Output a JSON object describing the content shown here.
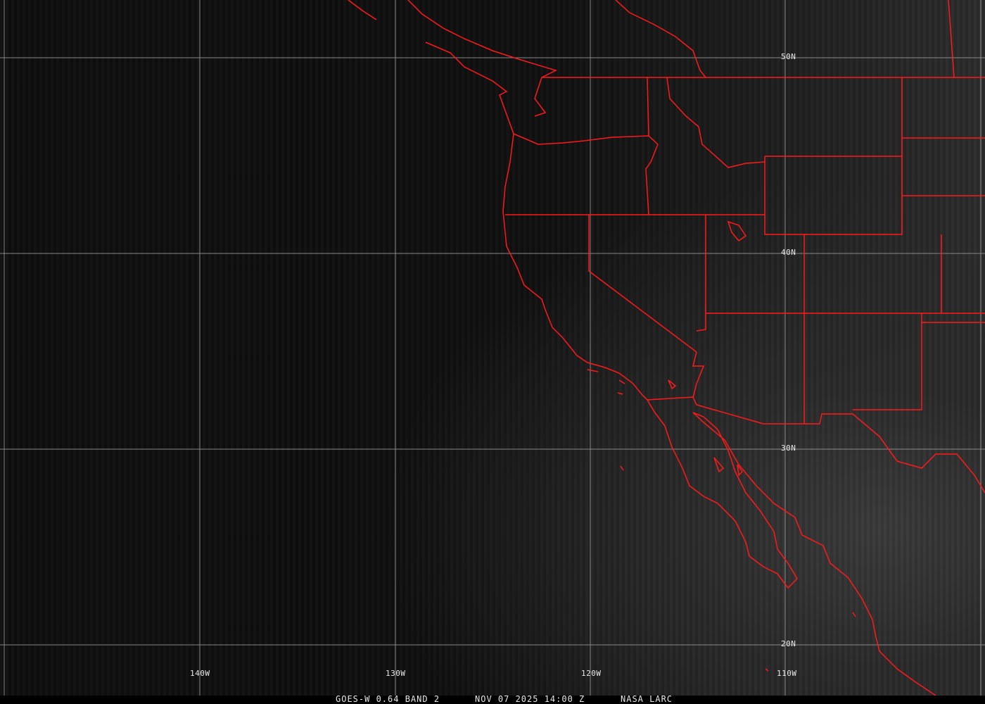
{
  "map": {
    "colors": {
      "borders": "#ff1a1a",
      "grid": "#9a9a9a",
      "text": "#e8e8e8"
    },
    "lat_labels": [
      "50N",
      "40N",
      "30N",
      "20N"
    ],
    "lon_labels": [
      "140W",
      "130W",
      "120W",
      "110W"
    ]
  },
  "caption": {
    "satellite": "GOES-W 0.64 BAND 2",
    "datetime": "NOV 07 2025 14:00 Z",
    "source": "NASA LARC"
  }
}
